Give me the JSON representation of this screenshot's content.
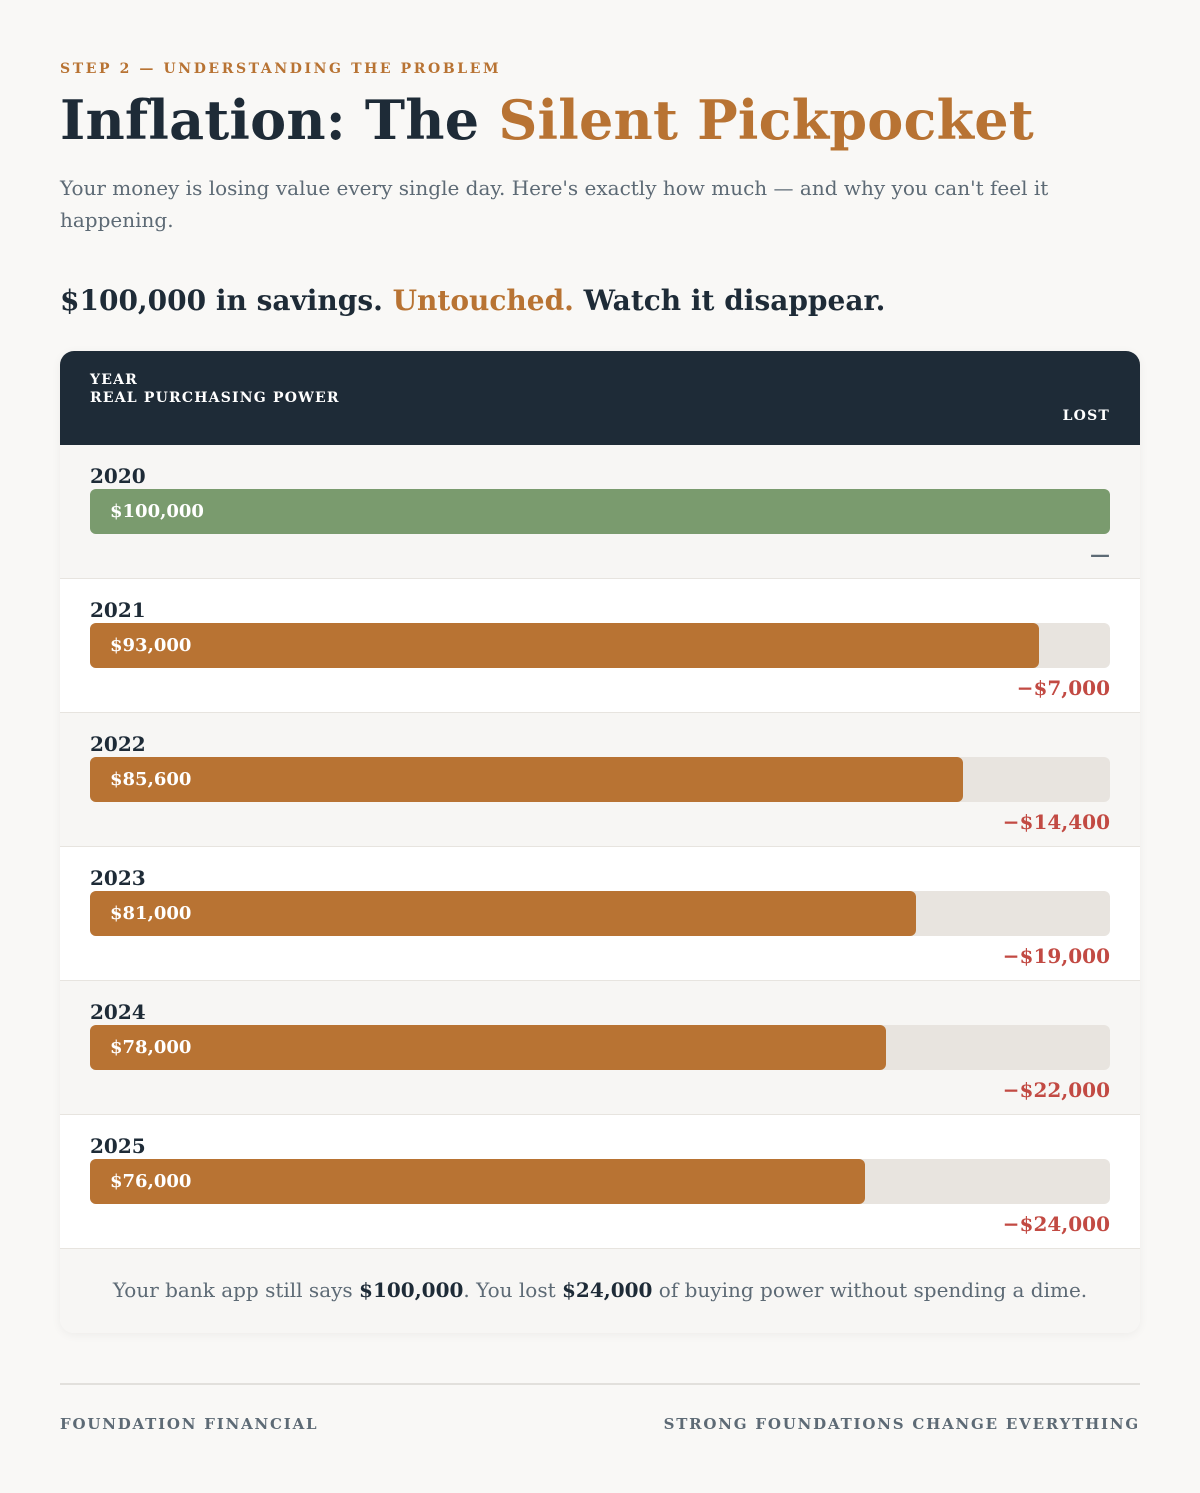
{
  "header": {
    "eyebrow": "STEP 2 — UNDERSTANDING THE PROBLEM",
    "title_main": "Inflation: The ",
    "title_accent": "Silent Pickpocket",
    "subtitle": "Your money is losing value every single day. Here's exactly how much — and why you can't feel it happening."
  },
  "section": {
    "lead": "$100,000 in savings. ",
    "accent": "Untouched.",
    "trail": " Watch it disappear."
  },
  "table": {
    "columns": {
      "year": "YEAR",
      "power": "REAL PURCHASING POWER",
      "lost": "LOST"
    },
    "rows": [
      {
        "year": "2020",
        "value_label": "$100,000",
        "lost_label": "—",
        "fraction": 1.0,
        "color": "#7a9b6e"
      },
      {
        "year": "2021",
        "value_label": "$93,000",
        "lost_label": "−$7,000",
        "fraction": 0.93,
        "color": "#b87333"
      },
      {
        "year": "2022",
        "value_label": "$85,600",
        "lost_label": "−$14,400",
        "fraction": 0.856,
        "color": "#b87333"
      },
      {
        "year": "2023",
        "value_label": "$81,000",
        "lost_label": "−$19,000",
        "fraction": 0.81,
        "color": "#b87333"
      },
      {
        "year": "2024",
        "value_label": "$78,000",
        "lost_label": "−$22,000",
        "fraction": 0.78,
        "color": "#b87333"
      },
      {
        "year": "2025",
        "value_label": "$76,000",
        "lost_label": "−$24,000",
        "fraction": 0.76,
        "color": "#b87333"
      }
    ],
    "footer": {
      "part1": "Your bank app still says ",
      "bold1": "$100,000",
      "part2": ". You lost ",
      "bold2": "$24,000",
      "part3": " of buying power without spending a dime."
    }
  },
  "footer": {
    "brand": "FOUNDATION FINANCIAL",
    "tagline": "STRONG FOUNDATIONS CHANGE EVERYTHING"
  },
  "colors": {
    "accent": "#b87333",
    "baseline_bar": "#7a9b6e",
    "loss": "#c24a43",
    "navy": "#1e2b37"
  }
}
